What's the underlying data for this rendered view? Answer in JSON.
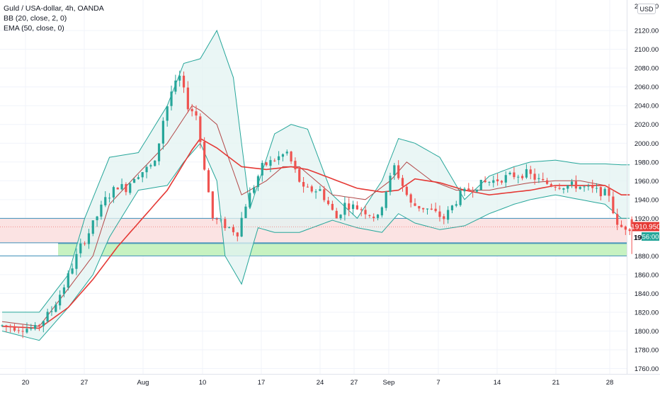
{
  "legend": {
    "symbol": "Guld / USA-dollar, 4h, OANDA",
    "bb": "BB (20, close, 2, 0)",
    "ema": "EMA (50, close, 0)"
  },
  "currency_button": "USD",
  "price_tags": {
    "current_price": "1910.950",
    "countdown_label": "56:00"
  },
  "colors": {
    "up_candle": "#26a69a",
    "down_candle": "#ef5350",
    "bb_line": "#26a69a",
    "bb_fill": "#e3f3f1",
    "bb_basis": "#b24848",
    "ema": "#e53935",
    "resistance_zone": "#fbe3e3",
    "support_zone": "#c7f2c1",
    "zone_border": "#3d8fb8"
  },
  "chart_data": {
    "type": "candlestick",
    "symbol": "Guld / USA-dollar",
    "timeframe": "4h",
    "source": "OANDA",
    "ylim": [
      1750,
      2140
    ],
    "y_ticks": [
      1760,
      1780,
      1800,
      1820,
      1840,
      1860,
      1880,
      1900,
      1920,
      1940,
      1960,
      1980,
      2000,
      2020,
      2040,
      2060,
      2080,
      2100,
      2120
    ],
    "x_ticks": [
      "20",
      "27",
      "Aug",
      "10",
      "17",
      "24",
      "27",
      "Sep",
      "7",
      "14",
      "21",
      "28"
    ],
    "price_anchors": {
      "x": [
        0,
        9,
        13,
        16,
        20,
        22,
        26,
        29,
        31,
        33,
        35,
        38,
        40,
        42,
        44,
        46,
        48,
        52,
        58,
        60,
        64,
        70,
        74,
        78,
        82,
        84,
        88,
        92,
        94,
        96,
        100,
        104,
        108,
        112,
        116,
        118,
        120,
        124,
        128,
        132,
        136,
        140,
        144,
        148,
        150,
        152
      ],
      "y": [
        1806,
        1802,
        1822,
        1848,
        1890,
        1905,
        1940,
        1955,
        1952,
        1965,
        1970,
        1978,
        2025,
        2055,
        2070,
        2040,
        2030,
        1920,
        1905,
        1935,
        1975,
        1990,
        1950,
        1950,
        1920,
        1935,
        1930,
        1920,
        1950,
        1975,
        1935,
        1930,
        1920,
        1945,
        1955,
        1958,
        1960,
        1965,
        1968,
        1958,
        1955,
        1955,
        1950,
        1946,
        1910,
        1911
      ]
    },
    "bb_upper": {
      "x": [
        0,
        9,
        16,
        20,
        26,
        33,
        40,
        44,
        48,
        52,
        56,
        60,
        66,
        70,
        74,
        80,
        86,
        92,
        96,
        100,
        106,
        112,
        118,
        124,
        128,
        134,
        140,
        146,
        150
      ],
      "y": [
        1820,
        1820,
        1860,
        1920,
        1985,
        1990,
        2040,
        2085,
        2090,
        2120,
        2070,
        1930,
        2010,
        2020,
        2015,
        1945,
        1920,
        1960,
        2005,
        2000,
        1985,
        1940,
        1965,
        1975,
        1980,
        1982,
        1978,
        1978,
        1977
      ]
    },
    "bb_lower": {
      "x": [
        0,
        9,
        16,
        22,
        26,
        33,
        40,
        44,
        48,
        52,
        54,
        58,
        62,
        66,
        72,
        80,
        86,
        92,
        96,
        100,
        106,
        112,
        118,
        124,
        128,
        134,
        140,
        146,
        150
      ],
      "y": [
        1800,
        1790,
        1825,
        1860,
        1900,
        1950,
        1955,
        1980,
        2000,
        1960,
        1880,
        1850,
        1910,
        1905,
        1905,
        1918,
        1910,
        1905,
        1925,
        1915,
        1908,
        1912,
        1925,
        1935,
        1940,
        1945,
        1940,
        1935,
        1920
      ]
    },
    "bb_basis": {
      "x": [
        0,
        9,
        16,
        22,
        26,
        33,
        40,
        46,
        48,
        52,
        58,
        64,
        68,
        72,
        80,
        88,
        94,
        98,
        104,
        110,
        118,
        124,
        128,
        134,
        140,
        146,
        150
      ],
      "y": [
        1810,
        1805,
        1845,
        1880,
        1935,
        1968,
        2000,
        2040,
        2035,
        2020,
        1945,
        1960,
        1975,
        1975,
        1945,
        1940,
        1960,
        1980,
        1960,
        1950,
        1950,
        1955,
        1958,
        1960,
        1960,
        1955,
        1945
      ]
    },
    "ema50": {
      "x": [
        0,
        9,
        16,
        22,
        28,
        34,
        40,
        46,
        48,
        52,
        58,
        64,
        70,
        74,
        80,
        86,
        92,
        96,
        100,
        106,
        112,
        118,
        124,
        128,
        134,
        140,
        146,
        150
      ],
      "y": [
        1805,
        1803,
        1825,
        1855,
        1890,
        1920,
        1950,
        1993,
        2005,
        1995,
        1975,
        1972,
        1975,
        1972,
        1962,
        1952,
        1948,
        1950,
        1962,
        1958,
        1950,
        1945,
        1948,
        1950,
        1955,
        1955,
        1955,
        1945
      ]
    },
    "zones": [
      {
        "name": "resistance",
        "low": 1894,
        "high": 1920
      },
      {
        "name": "support",
        "low": 1880,
        "high": 1894
      }
    ],
    "current_price": 1910.95
  }
}
